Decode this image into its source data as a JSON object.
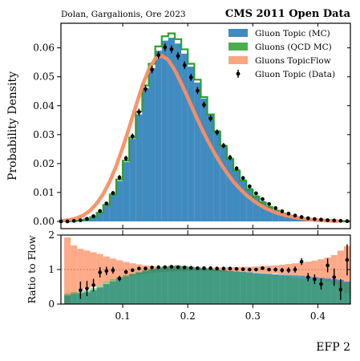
{
  "header": {
    "left_note": "Dolan, Gargalionis, Ore 2023",
    "right_title": "CMS 2011 Open Data"
  },
  "chart_data": {
    "type": "histogram",
    "xlabel": "EFP 2",
    "xlim": [
      0.005,
      0.45
    ],
    "x_ticks": [
      0.1,
      0.2,
      0.3,
      0.4
    ],
    "x_tick_labels": [
      "0.1",
      "0.2",
      "0.3",
      "0.4"
    ],
    "legend_position": "top-right",
    "panels": [
      {
        "id": "main",
        "ylabel": "Probability Density",
        "ylim": [
          -0.0025,
          0.0685
        ],
        "y_ticks": [
          0.0,
          0.01,
          0.02,
          0.03,
          0.04,
          0.05,
          0.06
        ],
        "y_tick_labels": [
          "0.00",
          "0.01",
          "0.02",
          "0.03",
          "0.04",
          "0.05",
          "0.06"
        ],
        "bin_edges": [
          0.0,
          0.01,
          0.02,
          0.03,
          0.04,
          0.05,
          0.06,
          0.07,
          0.08,
          0.09,
          0.1,
          0.11,
          0.12,
          0.13,
          0.14,
          0.15,
          0.16,
          0.17,
          0.18,
          0.19,
          0.2,
          0.21,
          0.22,
          0.23,
          0.24,
          0.25,
          0.26,
          0.27,
          0.28,
          0.29,
          0.3,
          0.31,
          0.32,
          0.33,
          0.34,
          0.35,
          0.36,
          0.37,
          0.38,
          0.39,
          0.4,
          0.41,
          0.42,
          0.43,
          0.44,
          0.45
        ],
        "series": [
          {
            "name": "Gluon Topic (MC)",
            "kind": "filled-histogram",
            "color": "#1f77b4",
            "values": [
              0.0,
              0.0,
              0.0001,
              0.0003,
              0.0007,
              0.0015,
              0.003,
              0.0055,
              0.009,
              0.014,
              0.0205,
              0.0285,
              0.037,
              0.046,
              0.053,
              0.059,
              0.0625,
              0.0635,
              0.0615,
              0.058,
              0.0535,
              0.048,
              0.0425,
              0.037,
              0.0315,
              0.0265,
              0.022,
              0.018,
              0.0145,
              0.0115,
              0.009,
              0.007,
              0.0053,
              0.004,
              0.003,
              0.0022,
              0.0016,
              0.0011,
              0.0008,
              0.0005,
              0.0003,
              0.0002,
              0.0001,
              0.0001,
              0.0
            ]
          },
          {
            "name": "Gluons (QCD MC)",
            "kind": "step-histogram",
            "color": "#2ca02c",
            "values": [
              0.0,
              0.0,
              0.0001,
              0.0003,
              0.0007,
              0.0015,
              0.003,
              0.0057,
              0.0093,
              0.0145,
              0.021,
              0.029,
              0.038,
              0.047,
              0.0545,
              0.0605,
              0.064,
              0.065,
              0.063,
              0.0595,
              0.0545,
              0.049,
              0.043,
              0.037,
              0.031,
              0.026,
              0.0215,
              0.0175,
              0.014,
              0.011,
              0.0085,
              0.0065,
              0.005,
              0.0037,
              0.0027,
              0.002,
              0.0014,
              0.001,
              0.0007,
              0.0005,
              0.0003,
              0.0002,
              0.0001,
              0.0001,
              0.0
            ]
          },
          {
            "name": "Gluons TopicFlow",
            "kind": "band",
            "color": "#fc8d62",
            "values": [
              0.0001,
              0.0003,
              0.0006,
              0.0012,
              0.0022,
              0.0038,
              0.0062,
              0.0095,
              0.0138,
              0.0192,
              0.0255,
              0.0325,
              0.0398,
              0.0468,
              0.0525,
              0.0563,
              0.0573,
              0.0558,
              0.0523,
              0.0477,
              0.0428,
              0.0377,
              0.0328,
              0.0282,
              0.024,
              0.0202,
              0.0168,
              0.0138,
              0.0113,
              0.0091,
              0.0073,
              0.0058,
              0.0045,
              0.0035,
              0.0027,
              0.0021,
              0.0016,
              0.0012,
              0.0009,
              0.0006,
              0.0004,
              0.0003,
              0.0002,
              0.0001
            ],
            "x": [
              0.0,
              0.01,
              0.02,
              0.03,
              0.04,
              0.05,
              0.06,
              0.07,
              0.08,
              0.09,
              0.1,
              0.11,
              0.12,
              0.13,
              0.14,
              0.15,
              0.16,
              0.17,
              0.18,
              0.19,
              0.2,
              0.21,
              0.22,
              0.23,
              0.24,
              0.25,
              0.26,
              0.27,
              0.28,
              0.29,
              0.3,
              0.31,
              0.32,
              0.33,
              0.34,
              0.35,
              0.36,
              0.37,
              0.38,
              0.39,
              0.4,
              0.41,
              0.42,
              0.43
            ]
          },
          {
            "name": "Gluon Topic (Data)",
            "kind": "errorbar",
            "color": "#000000",
            "x": [
              0.005,
              0.015,
              0.025,
              0.035,
              0.045,
              0.055,
              0.065,
              0.075,
              0.085,
              0.095,
              0.105,
              0.115,
              0.125,
              0.135,
              0.145,
              0.155,
              0.165,
              0.175,
              0.185,
              0.195,
              0.205,
              0.215,
              0.225,
              0.235,
              0.245,
              0.255,
              0.265,
              0.275,
              0.285,
              0.295,
              0.305,
              0.315,
              0.325,
              0.335,
              0.345,
              0.355,
              0.365,
              0.375,
              0.385,
              0.395,
              0.405,
              0.415,
              0.425,
              0.435,
              0.445
            ],
            "values": [
              0.0,
              0.0,
              0.0002,
              0.0004,
              0.0009,
              0.0018,
              0.0036,
              0.0062,
              0.0098,
              0.0152,
              0.0218,
              0.0294,
              0.0378,
              0.0458,
              0.0525,
              0.0575,
              0.0602,
              0.0595,
              0.0572,
              0.054,
              0.0498,
              0.0452,
              0.0403,
              0.0356,
              0.0308,
              0.0262,
              0.0221,
              0.0183,
              0.015,
              0.0121,
              0.0097,
              0.0077,
              0.006,
              0.0046,
              0.0035,
              0.0027,
              0.002,
              0.0015,
              0.0011,
              0.0008,
              0.0006,
              0.0004,
              0.0003,
              0.0002,
              0.0001
            ],
            "errors": [
              0.0002,
              0.0002,
              0.0002,
              0.0002,
              0.0003,
              0.0004,
              0.0005,
              0.0006,
              0.0007,
              0.0008,
              0.0009,
              0.001,
              0.0012,
              0.0012,
              0.0013,
              0.0013,
              0.0013,
              0.0013,
              0.0013,
              0.0013,
              0.0012,
              0.0012,
              0.0011,
              0.0011,
              0.001,
              0.0009,
              0.0009,
              0.0008,
              0.0007,
              0.0007,
              0.0006,
              0.0005,
              0.0005,
              0.0004,
              0.0004,
              0.0003,
              0.0003,
              0.0003,
              0.0002,
              0.0002,
              0.0002,
              0.0002,
              0.0002,
              0.0002,
              0.0002
            ]
          }
        ]
      },
      {
        "id": "ratio",
        "ylabel": "Ratio to Flow",
        "ylim": [
          0,
          2
        ],
        "y_ticks": [
          0,
          1,
          2
        ],
        "y_tick_labels": [
          "0",
          "1",
          "2"
        ],
        "series": [
          {
            "name": "Gluon Topic (MC)",
            "color": "#1f77b4",
            "bin_edges": [
              0.01,
              0.02,
              0.03,
              0.04,
              0.05,
              0.06,
              0.07,
              0.08,
              0.09,
              0.1,
              0.11,
              0.12,
              0.13,
              0.14,
              0.15,
              0.16,
              0.17,
              0.18,
              0.19,
              0.2,
              0.21,
              0.22,
              0.23,
              0.24,
              0.25,
              0.26,
              0.27,
              0.28,
              0.29,
              0.3,
              0.31,
              0.32,
              0.33,
              0.34,
              0.35,
              0.36,
              0.37,
              0.38,
              0.39,
              0.4,
              0.41,
              0.42,
              0.43,
              0.44,
              0.45
            ],
            "values": [
              0.25,
              0.3,
              0.32,
              0.34,
              0.4,
              0.48,
              0.58,
              0.66,
              0.74,
              0.8,
              0.86,
              0.91,
              0.96,
              1.0,
              1.04,
              1.08,
              1.1,
              1.11,
              1.1,
              1.08,
              1.06,
              1.04,
              1.02,
              1.0,
              0.98,
              0.96,
              0.94,
              0.93,
              0.92,
              0.9,
              0.89,
              0.88,
              0.86,
              0.85,
              0.84,
              0.83,
              0.82,
              0.8,
              0.78,
              0.76,
              0.74,
              0.72,
              0.7,
              0.65
            ]
          },
          {
            "name": "Gluons (QCD MC)",
            "color": "#2ca02c",
            "bin_edges": [
              0.01,
              0.02,
              0.03,
              0.04,
              0.05,
              0.06,
              0.07,
              0.08,
              0.09,
              0.1,
              0.11,
              0.12,
              0.13,
              0.14,
              0.15,
              0.16,
              0.17,
              0.18,
              0.19,
              0.2,
              0.21,
              0.22,
              0.23,
              0.24,
              0.25,
              0.26,
              0.27,
              0.28,
              0.29,
              0.3,
              0.31,
              0.32,
              0.33,
              0.34,
              0.35,
              0.36,
              0.37,
              0.38,
              0.39,
              0.4,
              0.41,
              0.42,
              0.43,
              0.44,
              0.45
            ],
            "values": [
              0.3,
              0.35,
              0.38,
              0.4,
              0.46,
              0.55,
              0.64,
              0.72,
              0.79,
              0.84,
              0.89,
              0.94,
              0.98,
              1.02,
              1.06,
              1.1,
              1.12,
              1.12,
              1.1,
              1.08,
              1.06,
              1.04,
              1.02,
              1.0,
              0.98,
              0.96,
              0.94,
              0.92,
              0.9,
              0.88,
              0.86,
              0.85,
              0.84,
              0.82,
              0.8,
              0.78,
              0.76,
              0.74,
              0.72,
              0.7,
              0.68,
              0.66,
              0.64,
              0.6
            ]
          },
          {
            "name": "Gluons TopicFlow",
            "color": "#fc8d62",
            "bin_edges": [
              0.01,
              0.02,
              0.03,
              0.04,
              0.05,
              0.06,
              0.07,
              0.08,
              0.09,
              0.1,
              0.11,
              0.12,
              0.13,
              0.14,
              0.15,
              0.16,
              0.17,
              0.18,
              0.19,
              0.2,
              0.21,
              0.22,
              0.23,
              0.24,
              0.25,
              0.26,
              0.27,
              0.28,
              0.29,
              0.3,
              0.31,
              0.32,
              0.33,
              0.34,
              0.35,
              0.36,
              0.37,
              0.38,
              0.39,
              0.4,
              0.41,
              0.42,
              0.43,
              0.44,
              0.45
            ],
            "upper": [
              1.93,
              1.7,
              1.6,
              1.55,
              1.5,
              1.45,
              1.38,
              1.32,
              1.27,
              1.22,
              1.18,
              1.15,
              1.12,
              1.1,
              1.08,
              1.07,
              1.06,
              1.05,
              1.05,
              1.05,
              1.05,
              1.05,
              1.05,
              1.06,
              1.06,
              1.07,
              1.07,
              1.08,
              1.08,
              1.09,
              1.1,
              1.11,
              1.12,
              1.14,
              1.16,
              1.18,
              1.2,
              1.23,
              1.26,
              1.3,
              1.35,
              1.42,
              1.55,
              1.68
            ],
            "lower": [
              0.0,
              0.3,
              0.4,
              0.45,
              0.5,
              0.55,
              0.62,
              0.68,
              0.73,
              0.78,
              0.82,
              0.85,
              0.88,
              0.9,
              0.92,
              0.93,
              0.94,
              0.95,
              0.95,
              0.95,
              0.95,
              0.95,
              0.95,
              0.94,
              0.94,
              0.93,
              0.93,
              0.92,
              0.92,
              0.91,
              0.9,
              0.89,
              0.88,
              0.86,
              0.84,
              0.82,
              0.8,
              0.77,
              0.74,
              0.7,
              0.65,
              0.58,
              0.45,
              0.32
            ]
          },
          {
            "name": "Gluon Topic (Data)",
            "color": "#000000",
            "x": [
              0.035,
              0.045,
              0.055,
              0.065,
              0.075,
              0.085,
              0.095,
              0.105,
              0.115,
              0.125,
              0.135,
              0.145,
              0.155,
              0.165,
              0.175,
              0.185,
              0.195,
              0.205,
              0.215,
              0.225,
              0.235,
              0.245,
              0.255,
              0.265,
              0.275,
              0.285,
              0.295,
              0.305,
              0.315,
              0.325,
              0.335,
              0.345,
              0.355,
              0.365,
              0.375,
              0.385,
              0.395,
              0.405,
              0.415,
              0.425,
              0.435,
              0.445
            ],
            "values": [
              0.4,
              0.45,
              0.55,
              0.92,
              0.96,
              0.98,
              0.74,
              0.93,
              0.98,
              1.03,
              1.03,
              1.06,
              1.07,
              1.07,
              1.08,
              1.07,
              1.06,
              1.05,
              1.04,
              1.04,
              1.04,
              1.03,
              1.03,
              1.03,
              1.02,
              1.01,
              1.0,
              1.0,
              1.04,
              1.0,
              1.0,
              0.98,
              0.98,
              1.0,
              1.23,
              0.78,
              0.72,
              0.58,
              1.12,
              0.78,
              0.42,
              1.28
            ],
            "errors": [
              0.25,
              0.22,
              0.18,
              0.15,
              0.12,
              0.1,
              0.08,
              0.06,
              0.05,
              0.04,
              0.03,
              0.03,
              0.03,
              0.03,
              0.03,
              0.03,
              0.03,
              0.03,
              0.03,
              0.03,
              0.03,
              0.03,
              0.03,
              0.03,
              0.03,
              0.03,
              0.04,
              0.04,
              0.05,
              0.05,
              0.06,
              0.07,
              0.08,
              0.09,
              0.1,
              0.12,
              0.14,
              0.16,
              0.2,
              0.25,
              0.3,
              0.45
            ]
          }
        ]
      }
    ]
  }
}
